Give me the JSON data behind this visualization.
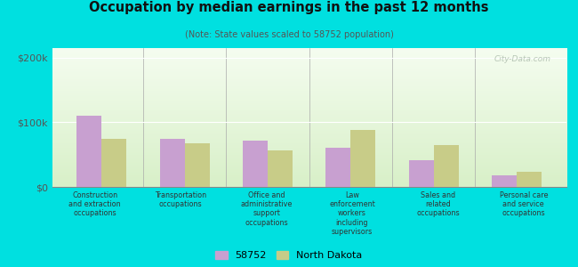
{
  "title": "Occupation by median earnings in the past 12 months",
  "subtitle": "(Note: State values scaled to 58752 population)",
  "categories": [
    "Construction\nand extraction\noccupations",
    "Transportation\noccupations",
    "Office and\nadministrative\nsupport\noccupations",
    "Law\nenforcement\nworkers\nincluding\nsupervisors",
    "Sales and\nrelated\noccupations",
    "Personal care\nand service\noccupations"
  ],
  "values_58752": [
    110000,
    75000,
    72000,
    60000,
    42000,
    18000
  ],
  "values_nd": [
    75000,
    68000,
    57000,
    88000,
    65000,
    23000
  ],
  "bar_color_58752": "#c8a0d0",
  "bar_color_nd": "#c8cc88",
  "plot_bg_color": "#e8f5e0",
  "ylabel_ticks": [
    "$0",
    "$100k",
    "$200k"
  ],
  "yticks": [
    0,
    100000,
    200000
  ],
  "ylim": [
    0,
    215000
  ],
  "legend_labels": [
    "58752",
    "North Dakota"
  ],
  "bg_outer": "#00e0e0",
  "watermark": "City-Data.com"
}
